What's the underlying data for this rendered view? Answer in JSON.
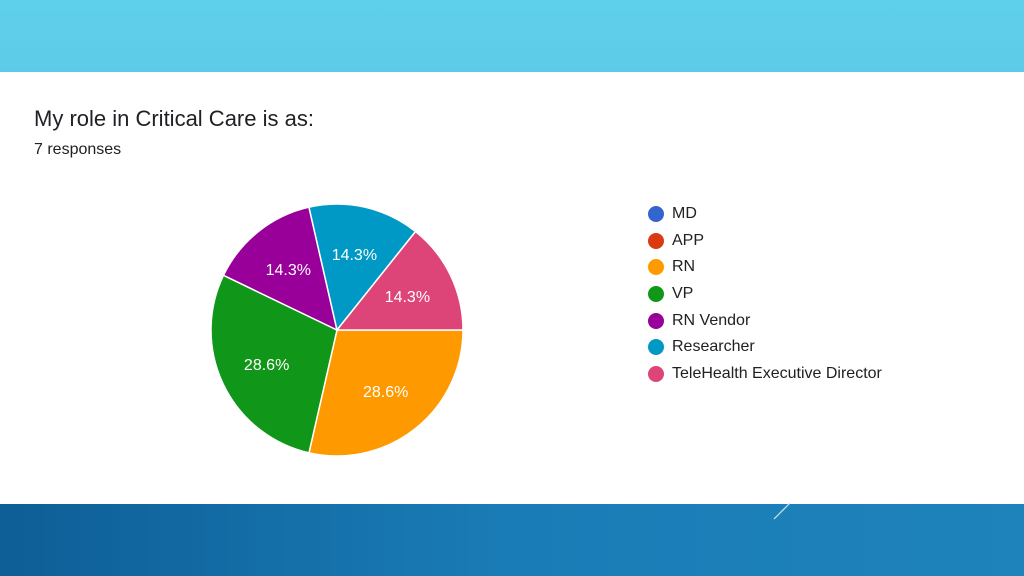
{
  "chart_data": {
    "type": "pie",
    "title": "My role in Critical Care is as:",
    "subtitle": "7 responses",
    "legend_position": "right",
    "slices": [
      {
        "label": "MD",
        "value": 0,
        "color": "#3366cc",
        "pct_label": ""
      },
      {
        "label": "APP",
        "value": 0,
        "color": "#dc3912",
        "pct_label": ""
      },
      {
        "label": "RN",
        "value": 2,
        "color": "#ff9900",
        "pct_label": "28.6%"
      },
      {
        "label": "VP",
        "value": 2,
        "color": "#109618",
        "pct_label": "28.6%"
      },
      {
        "label": "RN Vendor",
        "value": 1,
        "color": "#990099",
        "pct_label": "14.3%"
      },
      {
        "label": "Researcher",
        "value": 1,
        "color": "#0099c6",
        "pct_label": "14.3%"
      },
      {
        "label": "TeleHealth Executive Director",
        "value": 1,
        "color": "#dd4477",
        "pct_label": "14.3%"
      }
    ]
  },
  "theme": {
    "top_band_color": "#5fd0ec",
    "bottom_band_color": "#1573ad"
  }
}
